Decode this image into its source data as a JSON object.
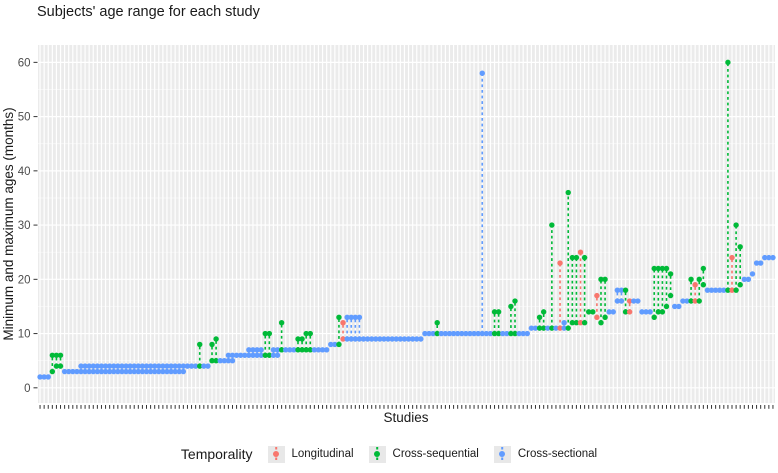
{
  "title": "Subjects' age range for each study",
  "legend": {
    "title": "Temporality",
    "items": [
      {
        "code": "r",
        "label": "Longitudinal",
        "color": "#F8766D"
      },
      {
        "code": "g",
        "label": "Cross-sequential",
        "color": "#00BA38"
      },
      {
        "code": "b",
        "label": "Cross-sectional",
        "color": "#619CFF"
      }
    ]
  },
  "colors": {
    "panel_bg": "#EBEBEB",
    "grid": "#FFFFFF",
    "tick_text": "#4D4D4D",
    "axis_text": "#1A1A1A",
    "legend_key_bg": "#E8E8E8"
  },
  "chart_data": {
    "type": "scatter",
    "title": "Subjects' age range for each study",
    "xlabel": "Studies",
    "ylabel": "Minimum and maximum ages (months)",
    "y_ticks": [
      0,
      10,
      20,
      30,
      40,
      50,
      60
    ],
    "ylim": [
      -2.8,
      63.2
    ],
    "grid": "white vertical line per study and horizontal lines every 10 (minor every 5) on light-gray panel",
    "legend_position": "bottom",
    "point_style": "dot at min age and dot at max age joined by vertical dashed line; single dot when min = max",
    "x_tick_labels": "one tiny tick per study, labels not legible",
    "temporality_codes": {
      "r": "Longitudinal",
      "g": "Cross-sequential",
      "b": "Cross-sectional"
    },
    "studies_format": [
      "temporality",
      "min_months",
      "max_months"
    ],
    "studies": [
      [
        "b",
        2,
        2
      ],
      [
        "b",
        2,
        2
      ],
      [
        "b",
        2,
        2
      ],
      [
        "g",
        3,
        6
      ],
      [
        "g",
        4,
        6
      ],
      [
        "g",
        4,
        6
      ],
      [
        "b",
        3,
        3
      ],
      [
        "b",
        3,
        3
      ],
      [
        "b",
        3,
        3
      ],
      [
        "b",
        3,
        3
      ],
      [
        "b",
        3,
        4
      ],
      [
        "b",
        3,
        4
      ],
      [
        "b",
        3,
        4
      ],
      [
        "b",
        3,
        4
      ],
      [
        "b",
        3,
        4
      ],
      [
        "b",
        3,
        4
      ],
      [
        "b",
        3,
        4
      ],
      [
        "b",
        3,
        4
      ],
      [
        "b",
        3,
        4
      ],
      [
        "b",
        3,
        4
      ],
      [
        "b",
        3,
        4
      ],
      [
        "b",
        3,
        4
      ],
      [
        "b",
        3,
        4
      ],
      [
        "b",
        3,
        4
      ],
      [
        "b",
        3,
        4
      ],
      [
        "b",
        3,
        4
      ],
      [
        "b",
        3,
        4
      ],
      [
        "b",
        3,
        4
      ],
      [
        "b",
        3,
        4
      ],
      [
        "b",
        3,
        4
      ],
      [
        "b",
        3,
        4
      ],
      [
        "b",
        3,
        4
      ],
      [
        "b",
        3,
        4
      ],
      [
        "b",
        3,
        4
      ],
      [
        "b",
        3,
        4
      ],
      [
        "b",
        3,
        4
      ],
      [
        "b",
        4,
        4
      ],
      [
        "b",
        4,
        4
      ],
      [
        "b",
        4,
        4
      ],
      [
        "g",
        4,
        8
      ],
      [
        "b",
        4,
        4
      ],
      [
        "b",
        4,
        4
      ],
      [
        "g",
        5,
        8
      ],
      [
        "g",
        5,
        9
      ],
      [
        "b",
        5,
        5
      ],
      [
        "b",
        5,
        5
      ],
      [
        "b",
        5,
        6
      ],
      [
        "b",
        5,
        6
      ],
      [
        "b",
        6,
        6
      ],
      [
        "b",
        6,
        6
      ],
      [
        "b",
        6,
        6
      ],
      [
        "b",
        6,
        7
      ],
      [
        "b",
        6,
        7
      ],
      [
        "b",
        6,
        7
      ],
      [
        "b",
        6,
        7
      ],
      [
        "g",
        6,
        10
      ],
      [
        "g",
        6,
        10
      ],
      [
        "b",
        6,
        7
      ],
      [
        "b",
        6,
        7
      ],
      [
        "g",
        7,
        12
      ],
      [
        "b",
        7,
        7
      ],
      [
        "b",
        7,
        7
      ],
      [
        "b",
        7,
        7
      ],
      [
        "g",
        7,
        9
      ],
      [
        "g",
        7,
        9
      ],
      [
        "g",
        7,
        10
      ],
      [
        "g",
        7,
        10
      ],
      [
        "b",
        7,
        7
      ],
      [
        "b",
        7,
        7
      ],
      [
        "b",
        7,
        7
      ],
      [
        "b",
        7,
        7
      ],
      [
        "b",
        8,
        8
      ],
      [
        "b",
        8,
        8
      ],
      [
        "g",
        8,
        13
      ],
      [
        "r",
        9,
        12
      ],
      [
        "b",
        9,
        13
      ],
      [
        "b",
        9,
        13
      ],
      [
        "b",
        9,
        13
      ],
      [
        "b",
        9,
        13
      ],
      [
        "b",
        9,
        9
      ],
      [
        "b",
        9,
        9
      ],
      [
        "b",
        9,
        9
      ],
      [
        "b",
        9,
        9
      ],
      [
        "b",
        9,
        9
      ],
      [
        "b",
        9,
        9
      ],
      [
        "b",
        9,
        9
      ],
      [
        "b",
        9,
        9
      ],
      [
        "b",
        9,
        9
      ],
      [
        "b",
        9,
        9
      ],
      [
        "b",
        9,
        9
      ],
      [
        "b",
        9,
        9
      ],
      [
        "b",
        9,
        9
      ],
      [
        "b",
        9,
        9
      ],
      [
        "b",
        9,
        9
      ],
      [
        "b",
        10,
        10
      ],
      [
        "b",
        10,
        10
      ],
      [
        "b",
        10,
        10
      ],
      [
        "g",
        10,
        12
      ],
      [
        "b",
        10,
        10
      ],
      [
        "b",
        10,
        10
      ],
      [
        "b",
        10,
        10
      ],
      [
        "b",
        10,
        10
      ],
      [
        "b",
        10,
        10
      ],
      [
        "b",
        10,
        10
      ],
      [
        "b",
        10,
        10
      ],
      [
        "b",
        10,
        10
      ],
      [
        "b",
        10,
        10
      ],
      [
        "b",
        10,
        10
      ],
      [
        "b",
        10,
        58
      ],
      [
        "b",
        10,
        10
      ],
      [
        "b",
        10,
        10
      ],
      [
        "g",
        10,
        14
      ],
      [
        "g",
        10,
        14
      ],
      [
        "b",
        10,
        10
      ],
      [
        "b",
        10,
        10
      ],
      [
        "g",
        10,
        15
      ],
      [
        "g",
        10,
        16
      ],
      [
        "b",
        10,
        10
      ],
      [
        "b",
        10,
        10
      ],
      [
        "b",
        10,
        10
      ],
      [
        "b",
        11,
        11
      ],
      [
        "b",
        11,
        11
      ],
      [
        "g",
        11,
        13
      ],
      [
        "g",
        11,
        14
      ],
      [
        "b",
        11,
        11
      ],
      [
        "g",
        11,
        30
      ],
      [
        "b",
        11,
        11
      ],
      [
        "r",
        11,
        23
      ],
      [
        "b",
        11,
        12
      ],
      [
        "g",
        11,
        36
      ],
      [
        "g",
        12,
        24
      ],
      [
        "g",
        12,
        24
      ],
      [
        "r",
        12,
        25
      ],
      [
        "g",
        12,
        24
      ],
      [
        "g",
        14,
        14
      ],
      [
        "g",
        14,
        14
      ],
      [
        "r",
        13,
        17
      ],
      [
        "g",
        12,
        20
      ],
      [
        "g",
        13,
        20
      ],
      [
        "b",
        14,
        14
      ],
      [
        "b",
        14,
        14
      ],
      [
        "b",
        16,
        18
      ],
      [
        "b",
        16,
        18
      ],
      [
        "g",
        14,
        18
      ],
      [
        "r",
        14,
        16
      ],
      [
        "b",
        16,
        16
      ],
      [
        "b",
        16,
        16
      ],
      [
        "b",
        14,
        14
      ],
      [
        "b",
        14,
        14
      ],
      [
        "b",
        14,
        14
      ],
      [
        "g",
        13,
        22
      ],
      [
        "g",
        14,
        22
      ],
      [
        "g",
        14,
        22
      ],
      [
        "g",
        15,
        22
      ],
      [
        "g",
        17,
        21
      ],
      [
        "b",
        15,
        15
      ],
      [
        "b",
        15,
        15
      ],
      [
        "b",
        16,
        16
      ],
      [
        "b",
        16,
        16
      ],
      [
        "g",
        16,
        20
      ],
      [
        "r",
        16,
        19
      ],
      [
        "g",
        16,
        20
      ],
      [
        "g",
        19,
        22
      ],
      [
        "b",
        18,
        18
      ],
      [
        "b",
        18,
        18
      ],
      [
        "b",
        18,
        18
      ],
      [
        "b",
        18,
        18
      ],
      [
        "b",
        18,
        18
      ],
      [
        "g",
        18,
        60
      ],
      [
        "r",
        18,
        24
      ],
      [
        "g",
        18,
        30
      ],
      [
        "g",
        19,
        26
      ],
      [
        "b",
        20,
        20
      ],
      [
        "b",
        20,
        20
      ],
      [
        "b",
        21,
        21
      ],
      [
        "b",
        23,
        23
      ],
      [
        "b",
        23,
        23
      ],
      [
        "b",
        24,
        24
      ],
      [
        "b",
        24,
        24
      ],
      [
        "b",
        24,
        24
      ]
    ]
  }
}
